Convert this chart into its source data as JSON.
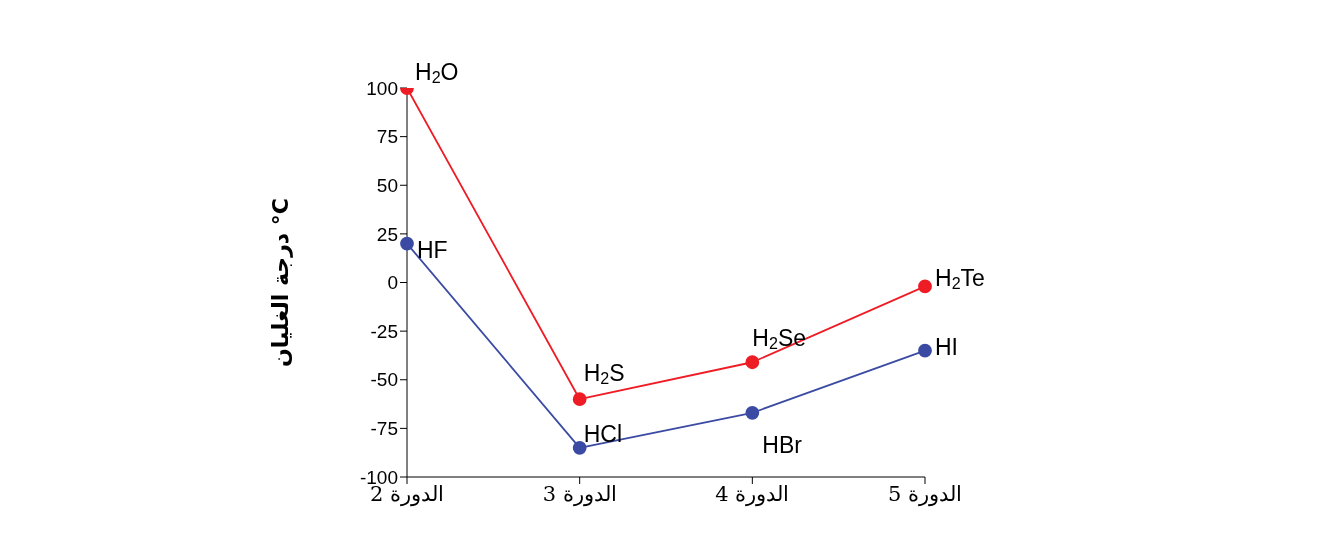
{
  "chart_data": {
    "type": "line",
    "ylabel": "درجة الغليان °C",
    "categories": [
      "الدورة 2",
      "الدورة 3",
      "الدورة 4",
      "الدورة 5"
    ],
    "series": [
      {
        "color": "#ee1c25",
        "values": [
          100,
          -60,
          -41,
          -2
        ]
      },
      {
        "color": "#3b4ba3",
        "values": [
          20,
          -85,
          -67,
          -35
        ]
      }
    ],
    "ylim": [
      -100,
      100
    ],
    "yticks": [
      -100,
      -75,
      -50,
      -25,
      0,
      25,
      50,
      75,
      100
    ],
    "grid": false,
    "legend": false,
    "marker": "circle",
    "line_style": "solid",
    "annotations": [
      {
        "text": "H$_{2}$O",
        "x": "الدورة 2",
        "y": 100
      },
      {
        "text": "HF",
        "x": "الدورة 2",
        "y": 20
      },
      {
        "text": "H$_{2}$S",
        "x": "الدورة 3",
        "y": -60
      },
      {
        "text": "HCl",
        "x": "الدورة 3",
        "y": -85
      },
      {
        "text": "H$_{2}$Se",
        "x": "الدورة 4",
        "y": -41
      },
      {
        "text": "HBr",
        "x": "الدورة 4",
        "y": -67
      },
      {
        "text": "H$_{2}$Te",
        "x": "الدورة 5",
        "y": -2
      },
      {
        "text": "HI",
        "x": "الدورة 5",
        "y": -35
      }
    ]
  }
}
